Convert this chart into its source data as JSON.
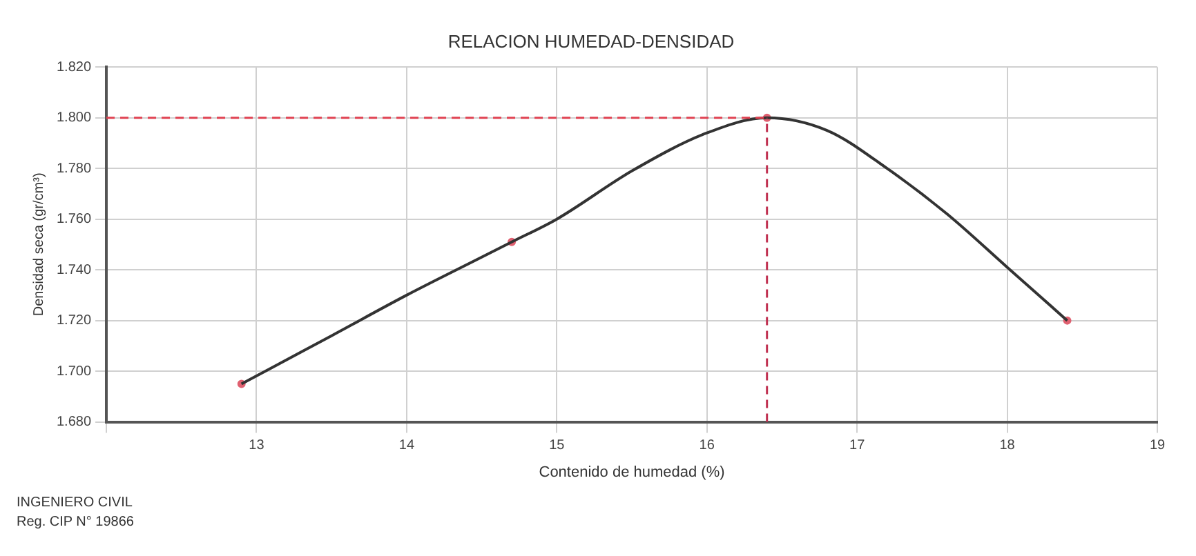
{
  "chart_data": {
    "type": "line",
    "title": "RELACION HUMEDAD-DENSIDAD",
    "xlabel": "Contenido de humedad (%)",
    "ylabel": "Densidad seca (gr/cm³)",
    "series": [
      {
        "type": "line",
        "color": "#333333",
        "marker": "none",
        "x": [
          12.9,
          13.5,
          14,
          14.5,
          14.7,
          15,
          15.5,
          16,
          16.4,
          16.8,
          17.2,
          17.6,
          18,
          18.4
        ],
        "values": [
          1.695,
          1.714,
          1.73,
          1.745,
          1.751,
          1.76,
          1.779,
          1.794,
          1.8,
          1.795,
          1.78,
          1.762,
          1.741,
          1.72
        ]
      },
      {
        "type": "scatter",
        "color": "#e06070",
        "marker": "circle",
        "x": [
          12.9,
          14.7,
          16.4,
          18.4
        ],
        "values": [
          1.695,
          1.751,
          1.8,
          1.72
        ]
      }
    ],
    "xlim": [
      12,
      19
    ],
    "xticks": [
      {
        "value": 12,
        "label": null
      },
      13,
      14,
      15,
      16,
      17,
      18,
      19
    ],
    "ylim": [
      1.68,
      1.82
    ],
    "yticks": [
      {
        "value": 1.68,
        "label": "1.680"
      },
      {
        "value": 1.7,
        "label": "1.700"
      },
      {
        "value": 1.72,
        "label": "1.720"
      },
      {
        "value": 1.74,
        "label": "1.740"
      },
      {
        "value": 1.76,
        "label": "1.760"
      },
      {
        "value": 1.78,
        "label": "1.780"
      },
      {
        "value": 1.8,
        "label": "1.800"
      },
      {
        "value": 1.82,
        "label": "1.820"
      }
    ],
    "ref_lines": [
      {
        "axis": "y",
        "value": 1.8,
        "color": "#e04050",
        "line_style": "dashed"
      },
      {
        "axis": "x",
        "value": 16.4,
        "color": "#c03050",
        "line_style": "dashed"
      }
    ],
    "annotations": [
      "INGENIERO CIVIL",
      "Reg. CIP N° 19866"
    ],
    "grid": true,
    "legend": false
  }
}
